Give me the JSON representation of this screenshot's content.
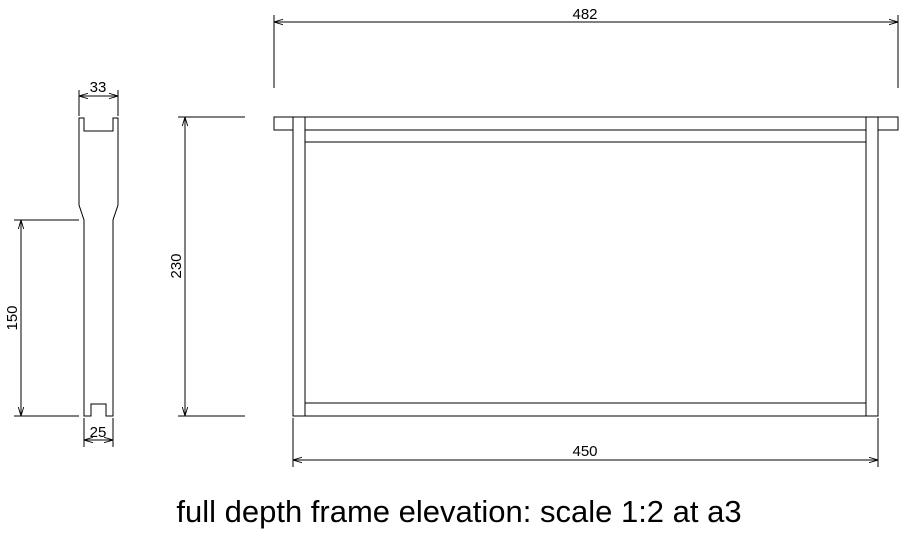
{
  "drawing": {
    "caption": "full depth frame elevation: scale 1:2 at a3",
    "dimensions": {
      "end_bar_width": "33",
      "end_bar_bottom_width": "25",
      "end_bar_narrow_height": "150",
      "frame_height": "230",
      "top_bar_length": "482",
      "frame_inner_length": "450"
    }
  }
}
